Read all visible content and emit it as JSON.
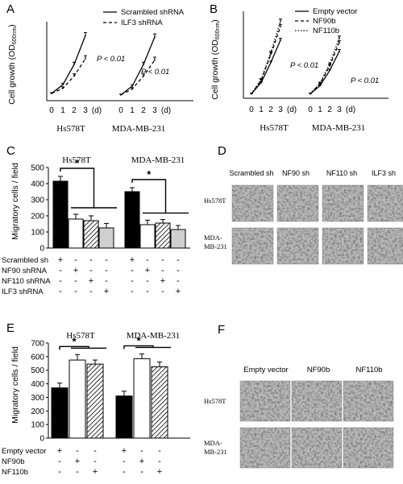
{
  "panels": {
    "A": {
      "letter": "A",
      "ylabel": "Cell growth (OD600nm)",
      "legend": [
        "Scrambled shRNA",
        "ILF3 shRNA"
      ],
      "pvalue": "P < 0.01",
      "cell_lines": [
        "Hs578T",
        "MDA-MB-231"
      ],
      "x_ticks": [
        "0",
        "1",
        "2",
        "3"
      ],
      "x_unit": "(d)"
    },
    "B": {
      "letter": "B",
      "ylabel": "Cell growth (OD600nm)",
      "legend": [
        "Empty vector",
        "NF90b",
        "NF110b"
      ],
      "pvalue": "P < 0.01",
      "cell_lines": [
        "Hs578T",
        "MDA-MB-231"
      ],
      "x_ticks": [
        "0",
        "1",
        "2",
        "3"
      ],
      "x_unit": "(d)"
    },
    "C": {
      "letter": "C",
      "ylabel": "Migratory cells / field",
      "cell_lines": [
        "Hs578T",
        "MDA-MB-231"
      ],
      "y_ticks": [
        "0",
        "100",
        "200",
        "300",
        "400",
        "500"
      ],
      "significance": "*",
      "rows": [
        {
          "label": "Scrambled sh",
          "signs": [
            "+",
            "-",
            "-",
            "-",
            "+",
            "-",
            "-",
            "-"
          ]
        },
        {
          "label": "NF90 shRNA",
          "signs": [
            "-",
            "+",
            "-",
            "-",
            "-",
            "+",
            "-",
            "-"
          ]
        },
        {
          "label": "NF110 shRNA",
          "signs": [
            "-",
            "-",
            "+",
            "-",
            "-",
            "-",
            "+",
            "-"
          ]
        },
        {
          "label": "ILF3 shRNA",
          "signs": [
            "-",
            "-",
            "-",
            "+",
            "-",
            "-",
            "-",
            "+"
          ]
        }
      ]
    },
    "D": {
      "letter": "D",
      "columns": [
        "Scrambled sh",
        "NF90 sh",
        "NF110 sh",
        "ILF3 sh"
      ],
      "rows": [
        "Hs578T",
        "MDA-MB-231"
      ]
    },
    "E": {
      "letter": "E",
      "ylabel": "Migratory cells / field",
      "cell_lines": [
        "Hs578T",
        "MDA-MB-231"
      ],
      "y_ticks": [
        "0",
        "100",
        "200",
        "300",
        "400",
        "500",
        "600",
        "700"
      ],
      "significance": "*",
      "rows": [
        {
          "label": "Empty vector",
          "signs": [
            "+",
            "-",
            "-",
            "+",
            "-",
            "-"
          ]
        },
        {
          "label": "NF90b",
          "signs": [
            "-",
            "+",
            "-",
            "-",
            "+",
            "-"
          ]
        },
        {
          "label": "NF110b",
          "signs": [
            "-",
            "-",
            "+",
            "-",
            "-",
            "+"
          ]
        }
      ]
    },
    "F": {
      "letter": "F",
      "columns": [
        "Empty vector",
        "NF90b",
        "NF110b"
      ],
      "rows": [
        "Hs578T",
        "MDA-MB-231"
      ]
    }
  },
  "chart_data": [
    {
      "panel": "A",
      "type": "line",
      "ylabel": "Cell growth (OD600nm)",
      "xlabel": "(d)",
      "groups": [
        {
          "cell_line": "Hs578T",
          "x": [
            0,
            1,
            2,
            3
          ],
          "series": [
            {
              "name": "Scrambled shRNA",
              "values": [
                0.1,
                0.22,
                0.5,
                0.9
              ],
              "err": [
                0.01,
                0.02,
                0.03,
                0.04
              ]
            },
            {
              "name": "ILF3 shRNA",
              "values": [
                0.1,
                0.17,
                0.34,
                0.58
              ],
              "err": [
                0.01,
                0.02,
                0.03,
                0.04
              ]
            }
          ]
        },
        {
          "cell_line": "MDA-MB-231",
          "x": [
            0,
            1,
            2,
            3
          ],
          "series": [
            {
              "name": "Scrambled shRNA",
              "values": [
                0.08,
                0.2,
                0.5,
                0.88
              ],
              "err": [
                0.01,
                0.02,
                0.03,
                0.04
              ]
            },
            {
              "name": "ILF3 shRNA",
              "values": [
                0.08,
                0.16,
                0.34,
                0.56
              ],
              "err": [
                0.01,
                0.02,
                0.03,
                0.04
              ]
            }
          ]
        }
      ]
    },
    {
      "panel": "B",
      "type": "line",
      "ylabel": "Cell growth (OD600nm)",
      "xlabel": "(d)",
      "groups": [
        {
          "cell_line": "Hs578T",
          "x": [
            0,
            1,
            2,
            3
          ],
          "series": [
            {
              "name": "Empty vector",
              "values": [
                0.1,
                0.35,
                0.8,
                1.3
              ],
              "err": [
                0.01,
                0.02,
                0.03,
                0.04
              ]
            },
            {
              "name": "NF90b",
              "values": [
                0.1,
                0.4,
                0.98,
                1.6
              ],
              "err": [
                0.01,
                0.02,
                0.03,
                0.05
              ]
            },
            {
              "name": "NF110b",
              "values": [
                0.1,
                0.42,
                1.02,
                1.72
              ],
              "err": [
                0.01,
                0.02,
                0.03,
                0.05
              ]
            }
          ]
        },
        {
          "cell_line": "MDA-MB-231",
          "x": [
            0,
            1,
            2,
            3
          ],
          "series": [
            {
              "name": "Empty vector",
              "values": [
                0.1,
                0.28,
                0.62,
                1.05
              ],
              "err": [
                0.01,
                0.02,
                0.03,
                0.04
              ]
            },
            {
              "name": "NF90b",
              "values": [
                0.1,
                0.32,
                0.72,
                1.25
              ],
              "err": [
                0.01,
                0.02,
                0.03,
                0.04
              ]
            },
            {
              "name": "NF110b",
              "values": [
                0.1,
                0.34,
                0.76,
                1.35
              ],
              "err": [
                0.01,
                0.02,
                0.03,
                0.04
              ]
            }
          ]
        }
      ]
    },
    {
      "panel": "C",
      "type": "bar",
      "ylabel": "Migratory cells / field",
      "ylim": [
        0,
        500
      ],
      "groups": [
        {
          "cell_line": "Hs578T",
          "values": [
            415,
            180,
            170,
            125
          ],
          "err": [
            30,
            30,
            30,
            28
          ]
        },
        {
          "cell_line": "MDA-MB-231",
          "values": [
            350,
            145,
            155,
            115
          ],
          "err": [
            25,
            28,
            22,
            25
          ]
        }
      ],
      "bar_fills": [
        "solid",
        "open",
        "hatched",
        "gray"
      ]
    },
    {
      "panel": "E",
      "type": "bar",
      "ylabel": "Migratory cells / field",
      "ylim": [
        0,
        700
      ],
      "groups": [
        {
          "cell_line": "Hs578T",
          "values": [
            370,
            575,
            545
          ],
          "err": [
            35,
            40,
            30
          ]
        },
        {
          "cell_line": "MDA-MB-231",
          "values": [
            310,
            585,
            525
          ],
          "err": [
            35,
            35,
            35
          ]
        }
      ],
      "bar_fills": [
        "solid",
        "open",
        "hatched"
      ]
    }
  ]
}
